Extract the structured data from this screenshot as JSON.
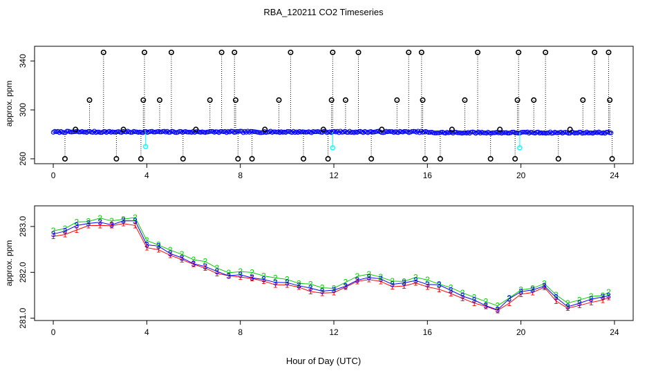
{
  "figure": {
    "title": "RBA_120211  CO2 Timeseries",
    "xlabel": "Hour of Day (UTC)"
  },
  "colors": {
    "series_1": "#ff0000",
    "series_2": "#00cc00",
    "series_3": "#0000ff",
    "raw_points": "#000000",
    "filtered_points": "#0000ff",
    "flagged_points": "#00ffff"
  },
  "chart_data": [
    {
      "type": "scatter",
      "panel": "top",
      "ylabel": "approx. ppm",
      "xlim": [
        -0.8,
        24.8
      ],
      "ylim": [
        256,
        352
      ],
      "x_ticks": [
        0,
        4,
        8,
        12,
        16,
        20,
        24
      ],
      "x_tick_labels": [
        "0",
        "4",
        "8",
        "12",
        "16",
        "20",
        "24"
      ],
      "y_ticks": [
        260,
        300,
        340
      ],
      "y_tick_labels": [
        "260",
        "300",
        "340"
      ],
      "grid": false,
      "legend": "none",
      "baseline_ppm": 282,
      "high_spikes": [
        {
          "x": 2.15,
          "y": 347
        },
        {
          "x": 3.9,
          "y": 347
        },
        {
          "x": 5.05,
          "y": 347
        },
        {
          "x": 7.2,
          "y": 347
        },
        {
          "x": 7.75,
          "y": 347
        },
        {
          "x": 10.15,
          "y": 347
        },
        {
          "x": 11.95,
          "y": 347
        },
        {
          "x": 13.05,
          "y": 347
        },
        {
          "x": 15.2,
          "y": 347
        },
        {
          "x": 15.75,
          "y": 347
        },
        {
          "x": 18.15,
          "y": 347
        },
        {
          "x": 19.9,
          "y": 347
        },
        {
          "x": 21.05,
          "y": 347
        },
        {
          "x": 23.15,
          "y": 347
        },
        {
          "x": 23.75,
          "y": 347
        }
      ],
      "mid_spikes": [
        {
          "x": 1.55,
          "y": 308
        },
        {
          "x": 3.85,
          "y": 308
        },
        {
          "x": 4.55,
          "y": 308
        },
        {
          "x": 6.7,
          "y": 308
        },
        {
          "x": 7.8,
          "y": 308
        },
        {
          "x": 9.65,
          "y": 308
        },
        {
          "x": 11.9,
          "y": 308
        },
        {
          "x": 12.5,
          "y": 308
        },
        {
          "x": 14.7,
          "y": 308
        },
        {
          "x": 15.8,
          "y": 308
        },
        {
          "x": 17.6,
          "y": 308
        },
        {
          "x": 19.85,
          "y": 308
        },
        {
          "x": 20.55,
          "y": 308
        },
        {
          "x": 22.65,
          "y": 308
        },
        {
          "x": 23.8,
          "y": 308
        }
      ],
      "low_spikes": [
        {
          "x": 0.5,
          "y": 260
        },
        {
          "x": 2.7,
          "y": 260
        },
        {
          "x": 3.75,
          "y": 260
        },
        {
          "x": 5.55,
          "y": 260
        },
        {
          "x": 7.9,
          "y": 260
        },
        {
          "x": 8.5,
          "y": 260
        },
        {
          "x": 10.7,
          "y": 260
        },
        {
          "x": 11.75,
          "y": 260
        },
        {
          "x": 13.6,
          "y": 260
        },
        {
          "x": 15.9,
          "y": 260
        },
        {
          "x": 16.55,
          "y": 260
        },
        {
          "x": 18.7,
          "y": 260
        },
        {
          "x": 19.75,
          "y": 260
        },
        {
          "x": 21.6,
          "y": 260
        },
        {
          "x": 23.9,
          "y": 260
        }
      ],
      "baseline_marks": [
        {
          "x": 0.95,
          "y": 284
        },
        {
          "x": 3.0,
          "y": 284
        },
        {
          "x": 6.1,
          "y": 284
        },
        {
          "x": 9.05,
          "y": 284
        },
        {
          "x": 11.55,
          "y": 284
        },
        {
          "x": 14.05,
          "y": 284
        },
        {
          "x": 17.05,
          "y": 284
        },
        {
          "x": 19.1,
          "y": 284
        },
        {
          "x": 22.1,
          "y": 284
        }
      ],
      "flagged_points": [
        {
          "x": 3.95,
          "y": 270
        },
        {
          "x": 11.95,
          "y": 269
        },
        {
          "x": 19.95,
          "y": 269
        }
      ]
    },
    {
      "type": "line",
      "panel": "bottom",
      "ylabel": "approx. ppm",
      "xlim": [
        -0.8,
        24.8
      ],
      "ylim": [
        280.95,
        283.45
      ],
      "x_ticks": [
        0,
        4,
        8,
        12,
        16,
        20,
        24
      ],
      "x_tick_labels": [
        "0",
        "4",
        "8",
        "12",
        "16",
        "20",
        "24"
      ],
      "y_ticks": [
        281.0,
        282.0,
        283.0
      ],
      "y_tick_labels": [
        "281.0",
        "282.0",
        "283.0"
      ],
      "grid": false,
      "legend": "none",
      "series": [
        {
          "name": "1",
          "marker": "1",
          "color": "#ff0000",
          "offset": -0.05
        },
        {
          "name": "2",
          "marker": "2",
          "color": "#00cc00",
          "offset": 0.07
        },
        {
          "name": "3",
          "marker": "3",
          "color": "#0000ff",
          "offset": 0.0
        }
      ],
      "x": [
        0,
        0.5,
        1.0,
        1.5,
        2.0,
        2.5,
        3.0,
        3.5,
        4.0,
        4.5,
        5.0,
        5.5,
        6.0,
        6.5,
        7.0,
        7.5,
        8.0,
        8.5,
        9.0,
        9.5,
        10.0,
        10.5,
        11.0,
        11.5,
        12.0,
        12.5,
        13.0,
        13.5,
        14.0,
        14.5,
        15.0,
        15.5,
        16.0,
        16.5,
        17.0,
        17.5,
        18.0,
        18.5,
        19.0,
        19.5,
        20.0,
        20.5,
        21.0,
        21.5,
        22.0,
        22.5,
        23.0,
        23.5,
        23.75
      ],
      "y": [
        282.85,
        282.9,
        283.0,
        283.05,
        283.1,
        283.05,
        283.1,
        283.1,
        282.6,
        282.55,
        282.4,
        282.3,
        282.2,
        282.15,
        282.05,
        281.95,
        281.95,
        281.9,
        281.85,
        281.8,
        281.75,
        281.7,
        281.65,
        281.6,
        281.6,
        281.7,
        281.85,
        281.9,
        281.85,
        281.75,
        281.75,
        281.8,
        281.75,
        281.7,
        281.6,
        281.5,
        281.4,
        281.3,
        281.2,
        281.4,
        281.55,
        281.6,
        281.7,
        281.45,
        281.25,
        281.35,
        281.4,
        281.45,
        281.5
      ]
    }
  ]
}
